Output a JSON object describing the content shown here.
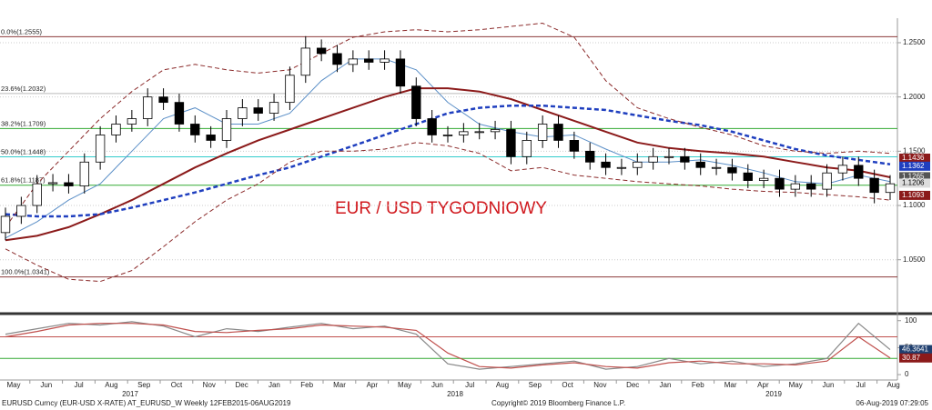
{
  "chart_data": [
    {
      "type": "candlestick",
      "annotation": "EUR / USD TYGODNIOWY",
      "ylim": [
        1.002,
        1.2726
      ],
      "yticks": [
        {
          "value": 1.05,
          "label": "1.0500"
        },
        {
          "value": 1.1,
          "label": "1.1000"
        },
        {
          "value": 1.15,
          "label": "1.1500"
        },
        {
          "value": 1.2,
          "label": "1.2000"
        },
        {
          "value": 1.25,
          "label": "1.2500"
        }
      ],
      "grid": true,
      "up_color": "#ffffff",
      "down_color": "#000000",
      "open": [
        1.075,
        1.09,
        1.1,
        1.12,
        1.121,
        1.118,
        1.14,
        1.165,
        1.175,
        1.18,
        1.2,
        1.195,
        1.175,
        1.165,
        1.16,
        1.18,
        1.19,
        1.185,
        1.195,
        1.22,
        1.245,
        1.24,
        1.23,
        1.235,
        1.232,
        1.235,
        1.21,
        1.18,
        1.165,
        1.165,
        1.168,
        1.168,
        1.17,
        1.145,
        1.16,
        1.175,
        1.16,
        1.15,
        1.14,
        1.135,
        1.135,
        1.14,
        1.145,
        1.145,
        1.14,
        1.135,
        1.135,
        1.13,
        1.123,
        1.125,
        1.115,
        1.12,
        1.115,
        1.13,
        1.137,
        1.125,
        1.112
      ],
      "high": [
        1.098,
        1.108,
        1.128,
        1.129,
        1.129,
        1.148,
        1.173,
        1.183,
        1.188,
        1.208,
        1.208,
        1.203,
        1.183,
        1.173,
        1.188,
        1.198,
        1.198,
        1.203,
        1.228,
        1.256,
        1.253,
        1.248,
        1.243,
        1.243,
        1.243,
        1.243,
        1.218,
        1.188,
        1.173,
        1.176,
        1.176,
        1.178,
        1.178,
        1.168,
        1.183,
        1.183,
        1.168,
        1.158,
        1.148,
        1.143,
        1.148,
        1.153,
        1.153,
        1.153,
        1.148,
        1.143,
        1.143,
        1.138,
        1.133,
        1.133,
        1.128,
        1.128,
        1.138,
        1.145,
        1.145,
        1.133,
        1.128
      ],
      "low": [
        1.068,
        1.083,
        1.093,
        1.113,
        1.111,
        1.111,
        1.133,
        1.158,
        1.168,
        1.173,
        1.188,
        1.168,
        1.158,
        1.153,
        1.153,
        1.173,
        1.178,
        1.178,
        1.188,
        1.213,
        1.233,
        1.223,
        1.223,
        1.225,
        1.225,
        1.203,
        1.173,
        1.158,
        1.158,
        1.158,
        1.161,
        1.161,
        1.138,
        1.138,
        1.153,
        1.153,
        1.143,
        1.133,
        1.128,
        1.128,
        1.128,
        1.133,
        1.138,
        1.133,
        1.128,
        1.128,
        1.123,
        1.116,
        1.116,
        1.108,
        1.108,
        1.108,
        1.108,
        1.123,
        1.118,
        1.102,
        1.105
      ],
      "close": [
        1.09,
        1.1,
        1.12,
        1.121,
        1.118,
        1.14,
        1.165,
        1.175,
        1.18,
        1.2,
        1.195,
        1.175,
        1.165,
        1.16,
        1.18,
        1.19,
        1.185,
        1.195,
        1.22,
        1.245,
        1.24,
        1.23,
        1.235,
        1.232,
        1.235,
        1.21,
        1.18,
        1.165,
        1.165,
        1.168,
        1.168,
        1.17,
        1.145,
        1.16,
        1.175,
        1.16,
        1.15,
        1.14,
        1.135,
        1.135,
        1.14,
        1.145,
        1.145,
        1.14,
        1.135,
        1.135,
        1.13,
        1.123,
        1.125,
        1.115,
        1.12,
        1.115,
        1.13,
        1.137,
        1.125,
        1.112,
        1.12
      ],
      "series": [
        {
          "color": "#5b8fc7",
          "dash": false,
          "width": 1,
          "x": [
            0,
            2,
            4,
            6,
            8,
            10,
            12,
            14,
            16,
            18,
            20,
            22,
            24,
            26,
            28,
            30,
            32,
            34,
            36,
            38,
            40,
            42,
            44,
            46,
            48,
            50,
            52,
            54,
            56
          ],
          "values": [
            1.07,
            1.085,
            1.105,
            1.12,
            1.15,
            1.18,
            1.19,
            1.175,
            1.175,
            1.185,
            1.215,
            1.235,
            1.235,
            1.225,
            1.195,
            1.175,
            1.168,
            1.163,
            1.165,
            1.152,
            1.14,
            1.14,
            1.142,
            1.137,
            1.13,
            1.122,
            1.12,
            1.128,
            1.122
          ]
        },
        {
          "color": "#8b1a1a",
          "dash": false,
          "width": 2,
          "x": [
            0,
            2,
            4,
            6,
            8,
            10,
            12,
            14,
            16,
            18,
            20,
            22,
            24,
            26,
            28,
            30,
            32,
            34,
            36,
            38,
            40,
            42,
            44,
            46,
            48,
            50,
            52,
            54,
            56
          ],
          "values": [
            1.068,
            1.072,
            1.08,
            1.092,
            1.105,
            1.12,
            1.135,
            1.148,
            1.16,
            1.17,
            1.18,
            1.19,
            1.2,
            1.208,
            1.208,
            1.205,
            1.198,
            1.188,
            1.178,
            1.168,
            1.158,
            1.153,
            1.15,
            1.148,
            1.145,
            1.14,
            1.135,
            1.132,
            1.126
          ]
        },
        {
          "color": "#1f3fbf",
          "dash": true,
          "width": 2.5,
          "x": [
            0,
            2,
            4,
            6,
            8,
            10,
            12,
            14,
            16,
            18,
            20,
            22,
            24,
            26,
            28,
            30,
            32,
            34,
            36,
            38,
            40,
            42,
            44,
            46,
            48,
            50,
            52,
            54,
            56
          ],
          "values": [
            1.092,
            1.09,
            1.09,
            1.092,
            1.098,
            1.105,
            1.112,
            1.12,
            1.128,
            1.135,
            1.145,
            1.155,
            1.165,
            1.175,
            1.185,
            1.19,
            1.192,
            1.192,
            1.19,
            1.188,
            1.183,
            1.178,
            1.174,
            1.168,
            1.16,
            1.152,
            1.146,
            1.142,
            1.138
          ]
        },
        {
          "color": "#8b2a2a",
          "dash": true,
          "width": 1,
          "x": [
            0,
            2,
            4,
            6,
            8,
            10,
            12,
            14,
            16,
            18,
            20,
            22,
            24,
            26,
            28,
            30,
            32,
            34,
            36,
            38,
            40,
            42,
            44,
            46,
            48,
            50,
            52,
            54,
            56
          ],
          "values": [
            1.08,
            1.12,
            1.15,
            1.18,
            1.205,
            1.225,
            1.23,
            1.225,
            1.222,
            1.225,
            1.24,
            1.255,
            1.26,
            1.262,
            1.26,
            1.262,
            1.265,
            1.268,
            1.255,
            1.215,
            1.19,
            1.18,
            1.172,
            1.165,
            1.155,
            1.15,
            1.148,
            1.15,
            1.148
          ]
        },
        {
          "color": "#8b2a2a",
          "dash": true,
          "width": 1,
          "x": [
            0,
            2,
            4,
            6,
            8,
            10,
            12,
            14,
            16,
            18,
            20,
            22,
            24,
            26,
            28,
            30,
            32,
            34,
            36,
            38,
            40,
            42,
            44,
            46,
            48,
            50,
            52,
            54,
            56
          ],
          "values": [
            1.06,
            1.045,
            1.032,
            1.03,
            1.04,
            1.062,
            1.085,
            1.105,
            1.12,
            1.14,
            1.15,
            1.15,
            1.152,
            1.158,
            1.155,
            1.148,
            1.132,
            1.135,
            1.128,
            1.125,
            1.122,
            1.12,
            1.118,
            1.115,
            1.113,
            1.112,
            1.11,
            1.108,
            1.105
          ]
        }
      ],
      "fib_levels": [
        {
          "value": 1.2555,
          "label": "0.0%(1.2555)",
          "color": "#8b3a3a"
        },
        {
          "value": 1.2032,
          "label": "23.6%(1.2032)",
          "color": "#bbbbbb"
        },
        {
          "value": 1.1709,
          "label": "38.2%(1.1709)",
          "color": "#33aa33"
        },
        {
          "value": 1.1448,
          "label": "50.0%(1.1448)",
          "color": "#33cccc"
        },
        {
          "value": 1.1187,
          "label": "61.8%(1.1187)",
          "color": "#33aa33"
        },
        {
          "value": 1.0341,
          "label": "100.0%(1.0341)",
          "color": "#8b3a3a"
        }
      ],
      "last_values": [
        {
          "value": 1.1436,
          "color": "#8b1a1a"
        },
        {
          "value": 1.1362,
          "color": "#1f3fbf"
        },
        {
          "value": 1.1265,
          "color": "#555555"
        },
        {
          "value": 1.1206,
          "color": "#dddddd"
        },
        {
          "value": 1.1093,
          "color": "#8b1a1a"
        }
      ]
    },
    {
      "type": "line",
      "ylim": [
        -10,
        108
      ],
      "yticks": [
        0,
        50,
        100
      ],
      "levels": [
        {
          "value": 70,
          "color": "#c0504d"
        },
        {
          "value": 30,
          "color": "#33aa33"
        }
      ],
      "x": [
        0,
        2,
        4,
        6,
        8,
        10,
        12,
        14,
        16,
        18,
        20,
        22,
        24,
        26,
        28,
        30,
        32,
        34,
        36,
        38,
        40,
        42,
        44,
        46,
        48,
        50,
        52,
        54,
        56
      ],
      "series": [
        {
          "color": "#888888",
          "values": [
            75,
            85,
            95,
            92,
            98,
            90,
            70,
            85,
            80,
            88,
            95,
            85,
            90,
            75,
            20,
            10,
            15,
            20,
            25,
            10,
            15,
            30,
            20,
            25,
            15,
            20,
            30,
            95,
            46.3641
          ]
        },
        {
          "color": "#c0504d",
          "values": [
            70,
            80,
            92,
            95,
            95,
            92,
            80,
            78,
            82,
            85,
            92,
            90,
            88,
            82,
            40,
            15,
            12,
            18,
            22,
            15,
            12,
            22,
            25,
            20,
            20,
            18,
            25,
            70,
            30.87
          ]
        }
      ]
    }
  ],
  "months": [
    "May",
    "Jun",
    "Jul",
    "Aug",
    "Sep",
    "Oct",
    "Nov",
    "Dec",
    "Jan",
    "Feb",
    "Mar",
    "Apr",
    "May",
    "Jun",
    "Jul",
    "Aug",
    "Sep",
    "Oct",
    "Nov",
    "Dec",
    "Jan",
    "Feb",
    "Mar",
    "Apr",
    "May",
    "Jun",
    "Jul",
    "Aug"
  ],
  "years": [
    "2017",
    "2018",
    "2019"
  ],
  "footer": {
    "left": "EURUSD Curncy (EUR-USD X-RATE) AT_EURUSD_W  Weekly 12FEB2015-06AUG2019",
    "center": "Copyright© 2019 Bloomberg Finance L.P.",
    "right": "06-Aug-2019 07:29:05"
  }
}
